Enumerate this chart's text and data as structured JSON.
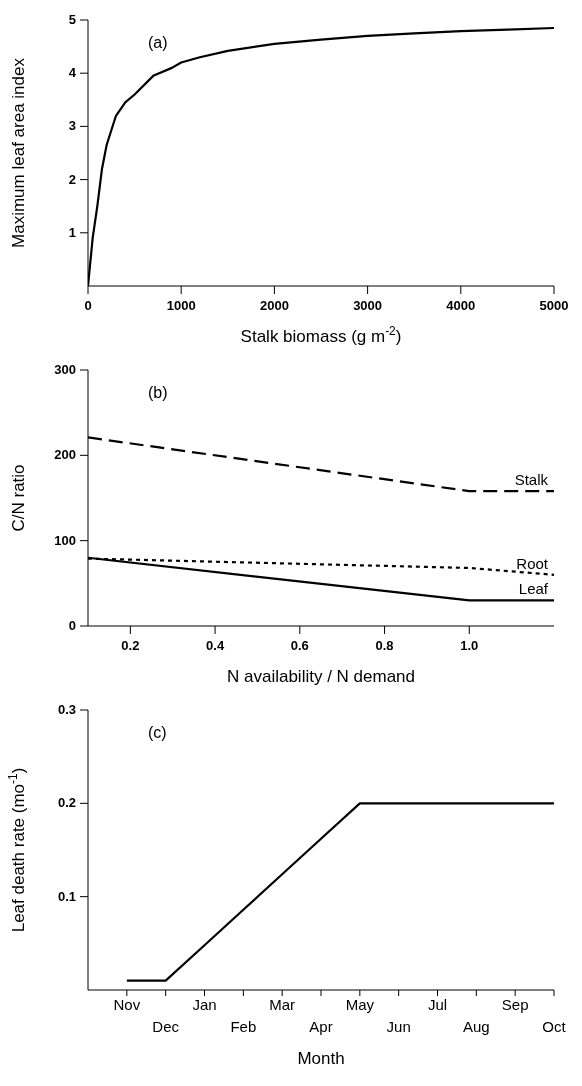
{
  "chart_data": [
    {
      "type": "line",
      "xlabel": "Stalk biomass (g m$^{-2}$)",
      "ylabel": "Maximum leaf area index",
      "annotations": [
        "(a)"
      ],
      "x": [
        0,
        50,
        100,
        150,
        200,
        300,
        400,
        500,
        700,
        900,
        1000,
        1200,
        1500,
        2000,
        2500,
        3000,
        3500,
        4000,
        4500,
        5000
      ],
      "series": [
        {
          "color": "#000000",
          "line_style": "solid",
          "values": [
            0,
            0.9,
            1.5,
            2.2,
            2.65,
            3.2,
            3.45,
            3.6,
            3.95,
            4.1,
            4.2,
            4.3,
            4.42,
            4.55,
            4.63,
            4.7,
            4.75,
            4.79,
            4.82,
            4.85
          ]
        }
      ],
      "xlim": [
        0,
        5000
      ],
      "ylim": [
        0,
        5
      ],
      "xticks": [
        0,
        1000,
        2000,
        3000,
        4000,
        5000
      ],
      "yticks": [
        1,
        2,
        3,
        4,
        5
      ]
    },
    {
      "type": "line",
      "xlabel": "N availability / N demand",
      "ylabel": "C/N ratio",
      "annotations": [
        "(b)"
      ],
      "x": [
        0.1,
        1.0,
        1.2
      ],
      "series": [
        {
          "name": "Stalk",
          "color": "#000000",
          "line_style": "dashed",
          "values": [
            221,
            158,
            158
          ]
        },
        {
          "name": "Root",
          "color": "#000000",
          "line_style": "dotted",
          "values": [
            79,
            68,
            60
          ]
        },
        {
          "name": "Leaf",
          "color": "#000000",
          "line_style": "solid",
          "values": [
            80,
            30,
            30
          ]
        }
      ],
      "xlim": [
        0.1,
        1.2
      ],
      "ylim": [
        0,
        300
      ],
      "xticks": [
        0.2,
        0.4,
        0.6,
        0.8,
        {
          "value": 1.0,
          "label": "1.0"
        }
      ],
      "yticks": [
        0,
        100,
        200,
        300
      ]
    },
    {
      "type": "line",
      "xlabel": "Month",
      "ylabel": "Leaf death rate (mo$^{-1}$)",
      "annotations": [
        "(c)"
      ],
      "categories": [
        "Nov",
        "Dec",
        "Jan",
        "Feb",
        "Mar",
        "Apr",
        "May",
        "Jun",
        "Jul",
        "Aug",
        "Sep",
        "Oct"
      ],
      "series": [
        {
          "color": "#000000",
          "line_style": "solid",
          "values": [
            0.01,
            0.01,
            0.048,
            0.086,
            0.124,
            0.162,
            0.2,
            0.2,
            0.2,
            0.2,
            0.2,
            0.2
          ]
        }
      ],
      "ylim": [
        0,
        0.3
      ],
      "yticks": [
        0.1,
        0.2,
        0.3
      ]
    }
  ]
}
